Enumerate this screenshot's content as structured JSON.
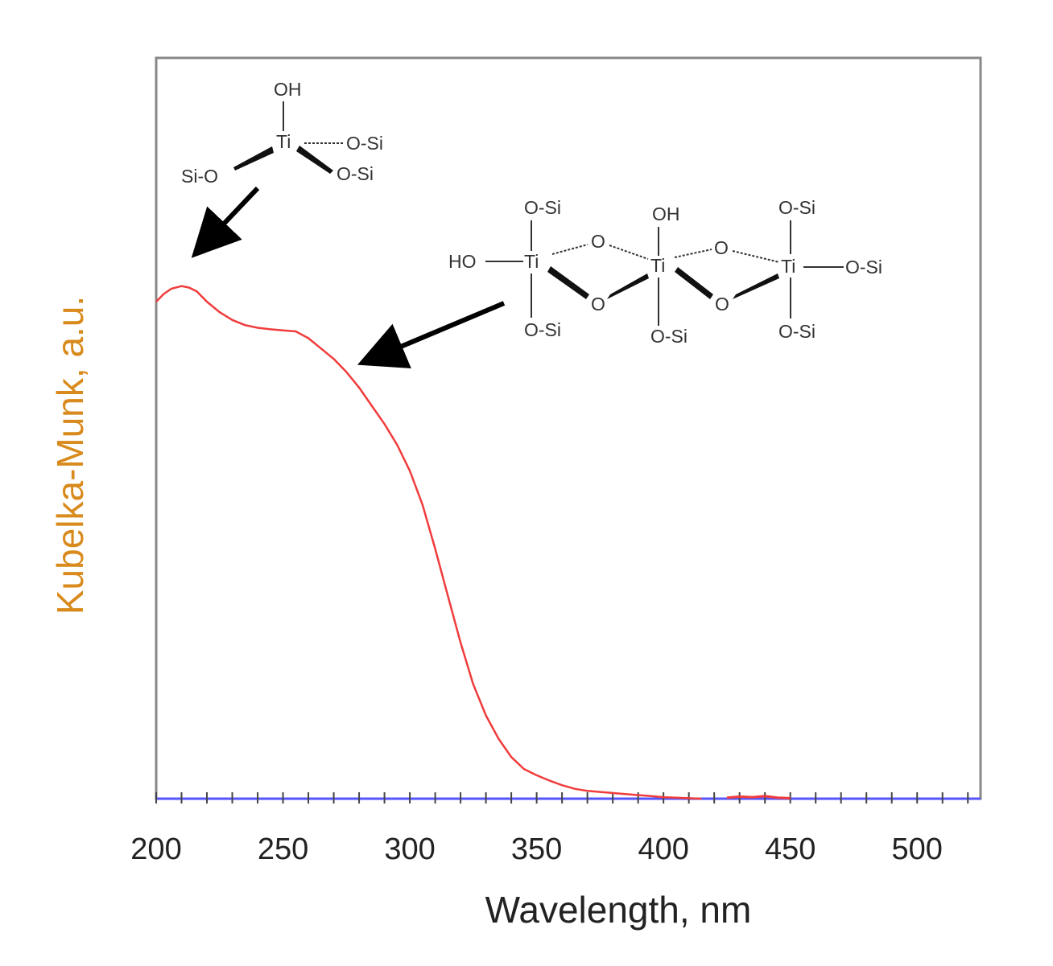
{
  "chart_data": {
    "type": "line",
    "title": "",
    "xlabel": "Wavelength, nm",
    "ylabel": "Kubelka-Munk, a.u.",
    "xlim": [
      200,
      525
    ],
    "ylim": [
      0,
      1.0
    ],
    "x_ticks": [
      200,
      250,
      300,
      350,
      400,
      450,
      500
    ],
    "x_tick_labels": [
      "200",
      "250",
      "300",
      "350",
      "400",
      "450",
      "500"
    ],
    "grid": false,
    "legend": "none",
    "colors": {
      "series": "#f03c3c",
      "baseline": "#5555ff",
      "xlabel": "#222222",
      "ylabel": "#d98a1c",
      "frame": "#888888"
    },
    "series": [
      {
        "x": [
          200,
          203,
          206,
          210,
          213,
          216,
          220,
          225,
          230,
          235,
          240,
          245,
          250,
          255,
          260,
          265,
          270,
          275,
          280,
          285,
          290,
          295,
          300,
          305,
          310,
          315,
          320,
          325,
          330,
          335,
          340,
          345,
          350,
          355,
          360,
          365,
          370,
          375,
          380,
          385,
          390,
          395,
          400,
          405,
          410,
          415
        ],
        "y": [
          0.955,
          0.97,
          0.98,
          0.985,
          0.982,
          0.975,
          0.955,
          0.935,
          0.92,
          0.91,
          0.905,
          0.902,
          0.9,
          0.898,
          0.885,
          0.865,
          0.845,
          0.82,
          0.79,
          0.755,
          0.72,
          0.68,
          0.63,
          0.565,
          0.48,
          0.39,
          0.3,
          0.22,
          0.16,
          0.115,
          0.08,
          0.057,
          0.045,
          0.035,
          0.026,
          0.019,
          0.015,
          0.013,
          0.011,
          0.009,
          0.007,
          0.005,
          0.003,
          0.002,
          0.001,
          0.0
        ]
      },
      {
        "x": [
          425,
          430,
          435,
          440,
          445,
          450
        ],
        "y": [
          0.002,
          0.004,
          0.003,
          0.005,
          0.002,
          0.001
        ]
      }
    ],
    "baseline_y": 0
  },
  "annotations": {
    "structure_a": {
      "labels": [
        "OH",
        "Ti",
        "O-Si",
        "Si-O",
        "O-Si"
      ]
    },
    "structure_b": {
      "labels": [
        "O-Si",
        "OH",
        "O-Si",
        "HO",
        "Ti",
        "O",
        "Ti",
        "O",
        "Ti",
        "O-Si",
        "O",
        "O",
        "O-Si",
        "O-Si",
        "O-Si"
      ]
    }
  }
}
